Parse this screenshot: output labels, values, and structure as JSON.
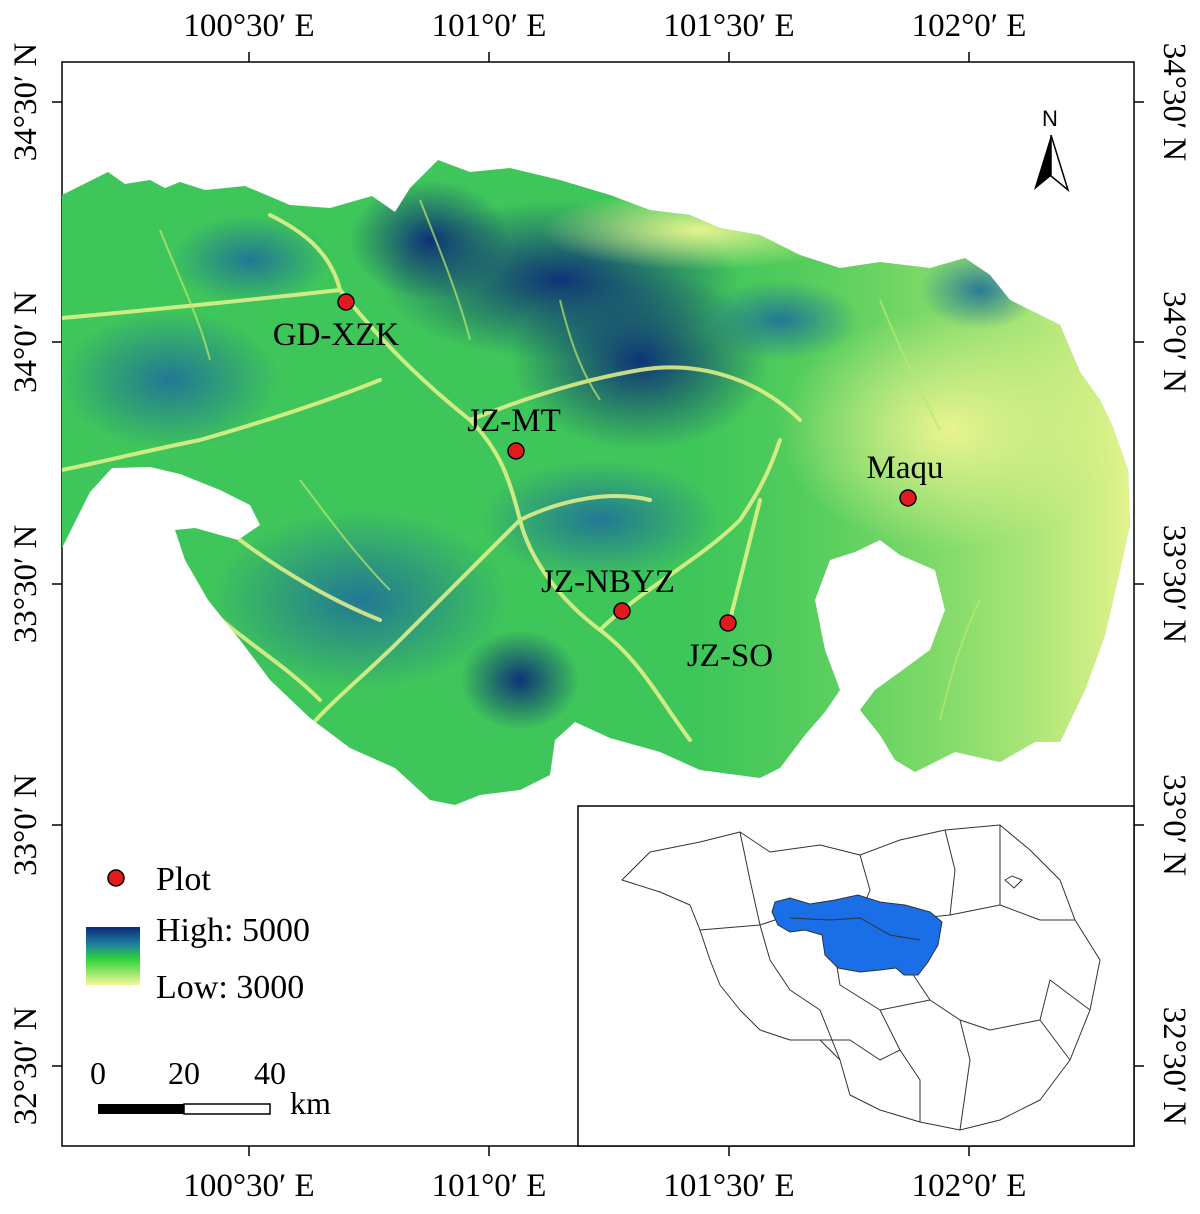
{
  "map": {
    "top_lon_labels": [
      "100°30′ E",
      "101°0′ E",
      "101°30′ E",
      "102°0′ E"
    ],
    "bottom_lon_labels": [
      "100°30′ E",
      "101°0′ E",
      "101°30′ E",
      "102°0′ E"
    ],
    "left_lat_labels": [
      "34°30′ N",
      "34°0′ N",
      "33°30′ N",
      "33°0′ N",
      "32°30′ N"
    ],
    "right_lat_labels": [
      "34°30′ N",
      "34°0′ N",
      "33°30′ N",
      "33°0′ N",
      "32°30′ N"
    ],
    "north_arrow_label": "N",
    "sites": [
      {
        "name": "GD-XZK"
      },
      {
        "name": "JZ-MT"
      },
      {
        "name": "JZ-NBYZ"
      },
      {
        "name": "JZ-SO"
      },
      {
        "name": "Maqu"
      }
    ],
    "legend": {
      "plot_label": "Plot",
      "high_label": "High: 5000",
      "low_label": "Low: 3000",
      "elevation_colors": {
        "high": "#0b2b78",
        "mid": "#2fd33a",
        "low": "#f4f79a"
      }
    },
    "scale_bar": {
      "labels": [
        "0",
        "20",
        "40"
      ],
      "unit": "km"
    },
    "colors": {
      "plot_marker": "#e11b1b",
      "inset_highlight": "#1a6fe6"
    }
  }
}
